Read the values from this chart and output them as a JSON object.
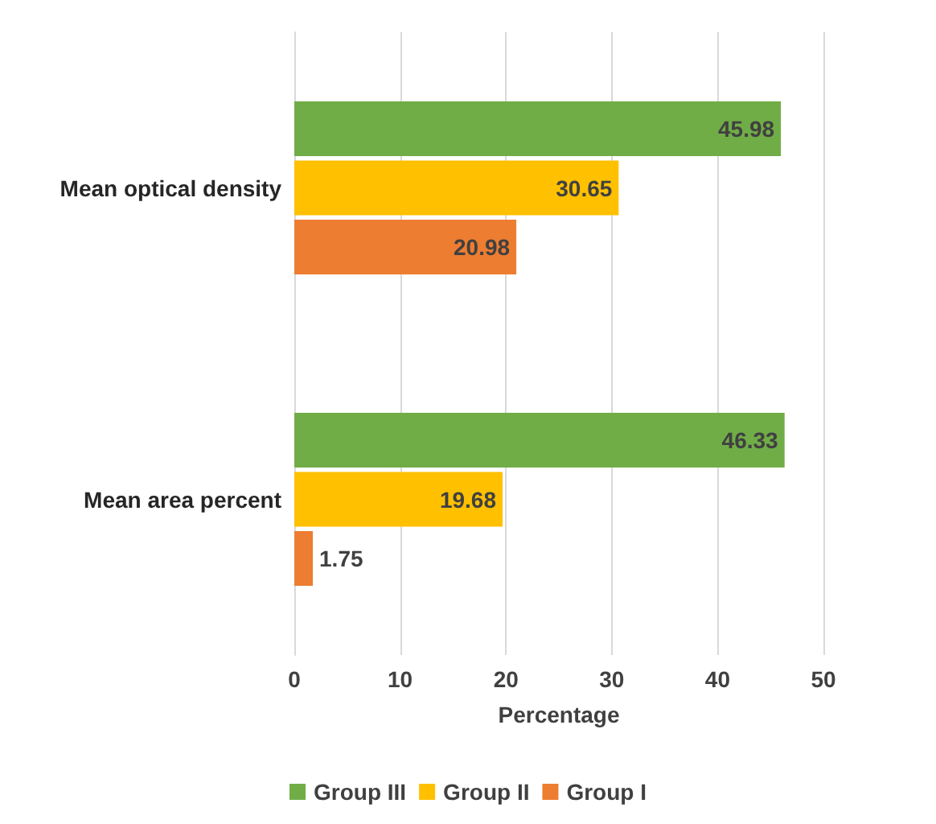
{
  "chart_data": {
    "type": "bar",
    "orientation": "horizontal",
    "categories": [
      "Mean optical density",
      "Mean area percent"
    ],
    "series": [
      {
        "name": "Group III",
        "color": "#70ad47",
        "values": [
          45.98,
          46.33
        ]
      },
      {
        "name": "Group II",
        "color": "#ffc000",
        "values": [
          30.65,
          19.68
        ]
      },
      {
        "name": "Group I",
        "color": "#ed7d31",
        "values": [
          20.98,
          1.75
        ]
      }
    ],
    "xlabel": "Percentage",
    "xlim": [
      0,
      50
    ],
    "xticks": [
      0,
      10,
      20,
      30,
      40,
      50
    ],
    "grid": "x",
    "legend": "bottom",
    "data_labels": true
  }
}
